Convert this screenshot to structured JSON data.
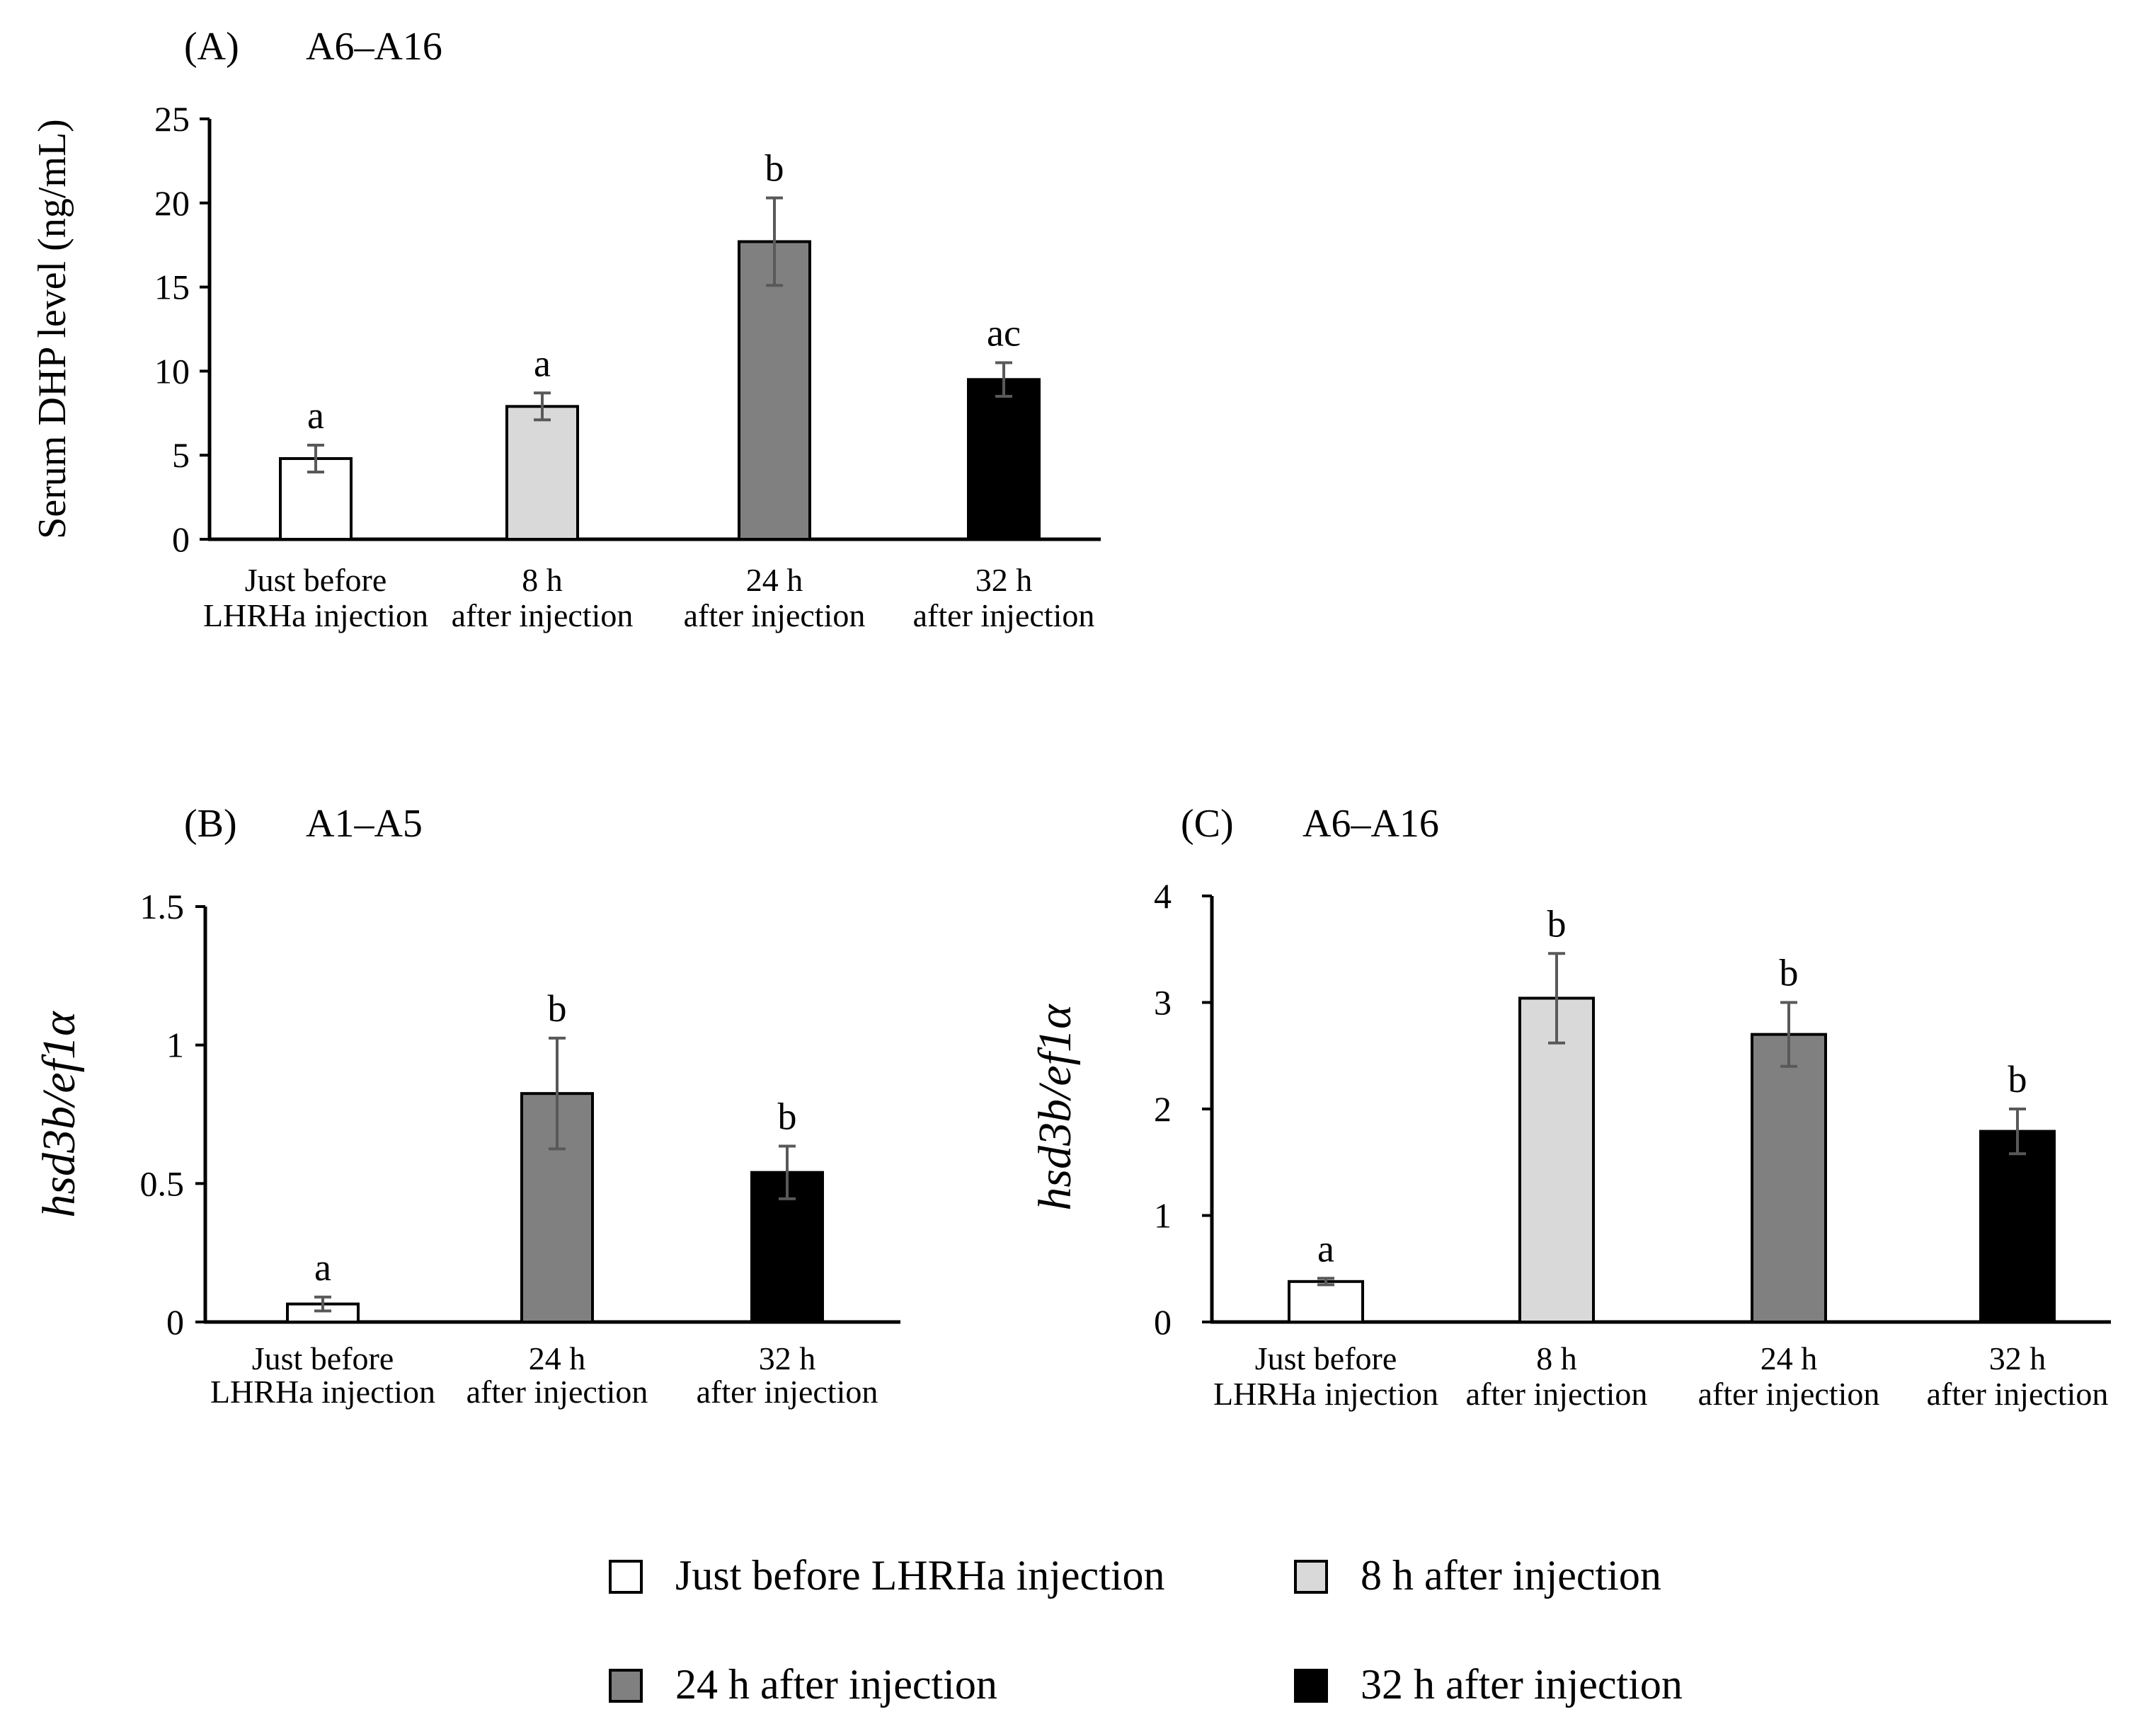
{
  "colors": {
    "just_before": "#ffffff",
    "h8": "#d9d9d9",
    "h24": "#808080",
    "h32": "#000000",
    "axis": "#000000",
    "errorbar": "#595959"
  },
  "chart_data": [
    {
      "id": "A",
      "type": "bar",
      "panel_label": "(A)",
      "title": "A6–A16",
      "ylabel": "Serum DHP level (ng/mL)",
      "ylim": [
        0,
        25
      ],
      "yticks": [
        0,
        5,
        10,
        15,
        20,
        25
      ],
      "categories": [
        {
          "line1": "Just before",
          "line2": "LHRHa injection",
          "key": "just_before"
        },
        {
          "line1": "8  h",
          "line2": "after injection",
          "key": "h8"
        },
        {
          "line1": "24 h",
          "line2": "after injection",
          "key": "h24"
        },
        {
          "line1": "32 h",
          "line2": "after injection",
          "key": "h32"
        }
      ],
      "values": [
        4.8,
        7.9,
        17.7,
        9.5
      ],
      "errors": [
        0.8,
        0.8,
        2.6,
        1.0
      ],
      "significance": [
        "a",
        "a",
        "b",
        "ac"
      ]
    },
    {
      "id": "B",
      "type": "bar",
      "panel_label": "(B)",
      "title": "A1–A5",
      "ylabel": "hsd3b/ef1α",
      "ylim": [
        0,
        1.5
      ],
      "yticks": [
        0,
        0.5,
        1,
        1.5
      ],
      "categories": [
        {
          "line1": "Just before",
          "line2": "LHRHa injection",
          "key": "just_before"
        },
        {
          "line1": "24 h",
          "line2": "after injection",
          "key": "h24"
        },
        {
          "line1": "32 h",
          "line2": "after injection",
          "key": "h32"
        }
      ],
      "values": [
        0.065,
        0.825,
        0.54
      ],
      "errors": [
        0.025,
        0.2,
        0.095
      ],
      "significance": [
        "a",
        "b",
        "b"
      ]
    },
    {
      "id": "C",
      "type": "bar",
      "panel_label": "(C)",
      "title": "A6–A16",
      "ylabel": "hsd3b/ef1α",
      "ylim": [
        0,
        4
      ],
      "yticks": [
        0,
        1,
        2,
        3,
        4
      ],
      "categories": [
        {
          "line1": "Just before",
          "line2": "LHRHa injection",
          "key": "just_before"
        },
        {
          "line1": "8  h",
          "line2": "after injection",
          "key": "h8"
        },
        {
          "line1": "24 h",
          "line2": "after injection",
          "key": "h24"
        },
        {
          "line1": "32 h",
          "line2": "after injection",
          "key": "h32"
        }
      ],
      "values": [
        0.38,
        3.04,
        2.7,
        1.79
      ],
      "errors": [
        0.03,
        0.42,
        0.3,
        0.21
      ],
      "significance": [
        "a",
        "b",
        "b",
        "b"
      ]
    }
  ],
  "legend": [
    {
      "label": "Just before LHRHa injection",
      "key": "just_before"
    },
    {
      "label": "8 h after injection",
      "key": "h8"
    },
    {
      "label": "24 h after injection",
      "key": "h24"
    },
    {
      "label": "32 h after injection",
      "key": "h32"
    }
  ]
}
